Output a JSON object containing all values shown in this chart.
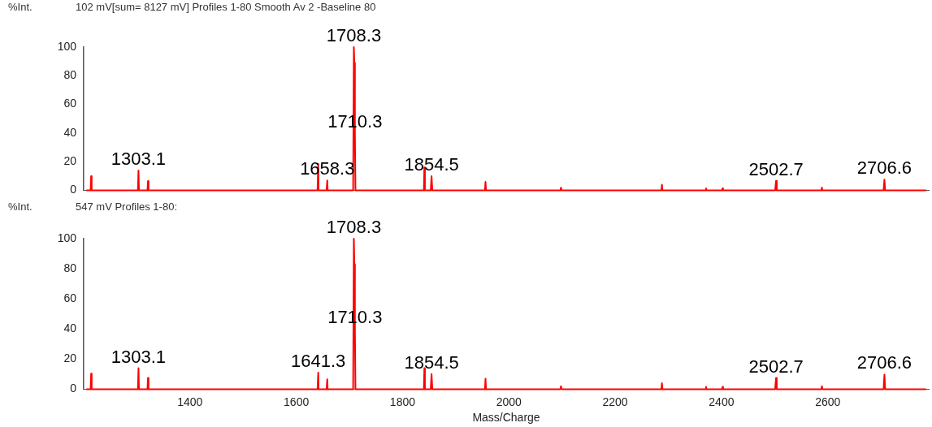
{
  "chart_data": [
    {
      "type": "line",
      "title": "102 mV[sum= 8127 mV]  Profiles 1-80 Smooth Av 2 -Baseline 80",
      "ylabel": "%Int.",
      "xlim": [
        1200,
        2790
      ],
      "ylim": [
        0,
        100
      ],
      "yticks": [
        0,
        20,
        40,
        60,
        80,
        100
      ],
      "tick_labels": "y",
      "series": [
        {
          "color": "#ff0000",
          "x": [
            1205,
            1213,
            1214,
            1215,
            1302,
            1303.1,
            1304,
            1320,
            1321,
            1322,
            1640,
            1641.3,
            1642,
            1657,
            1658.3,
            1659,
            1707,
            1708.3,
            1709.3,
            1710.3,
            1711.3,
            1840,
            1841,
            1842,
            1853,
            1854.5,
            1856,
            1955,
            1956,
            1957,
            2097,
            2098,
            2099,
            2287,
            2288,
            2289,
            2370,
            2371,
            2372,
            2401,
            2402,
            2403,
            2501,
            2502.7,
            2504,
            2588,
            2589,
            2590,
            2705,
            2706.6,
            2708,
            2785
          ],
          "values": [
            0,
            0,
            10,
            0,
            0,
            14,
            0,
            0,
            6.5,
            0,
            0,
            18.5,
            0,
            0,
            7,
            0,
            0,
            100,
            89,
            40,
            0,
            0,
            16,
            0,
            0,
            10,
            0,
            0,
            6,
            0,
            0,
            2,
            0,
            0,
            4,
            0,
            0,
            1.5,
            0,
            0,
            1.5,
            0,
            0,
            6.7,
            0,
            0,
            2,
            0,
            0,
            7.6,
            0,
            0
          ]
        }
      ],
      "annotations": [
        {
          "text": "1303.1",
          "x": 1303.1,
          "y": 14
        },
        {
          "text": "1658.3",
          "x": 1658.3,
          "y": 7
        },
        {
          "text": "1708.3",
          "x": 1708.3,
          "y": 100
        },
        {
          "text": "1710.3",
          "x": 1710.3,
          "y": 40
        },
        {
          "text": "1854.5",
          "x": 1854.5,
          "y": 10
        },
        {
          "text": "2502.7",
          "x": 2502.7,
          "y": 6.7
        },
        {
          "text": "2706.6",
          "x": 2706.6,
          "y": 7.6
        }
      ]
    },
    {
      "type": "line",
      "title": "547 mV  Profiles 1-80:",
      "ylabel": "%Int.",
      "xlabel": "Mass/Charge",
      "xlim": [
        1200,
        2790
      ],
      "xticks": [
        1400,
        1600,
        1800,
        2000,
        2200,
        2400,
        2600
      ],
      "ylim": [
        0,
        100
      ],
      "yticks": [
        0,
        20,
        40,
        60,
        80,
        100
      ],
      "series": [
        {
          "color": "#ff0000",
          "x": [
            1205,
            1213,
            1214,
            1215,
            1302,
            1303.1,
            1304,
            1320,
            1321,
            1322,
            1640,
            1641.3,
            1642,
            1657,
            1658.3,
            1659,
            1707,
            1708.3,
            1709.3,
            1710.3,
            1711.3,
            1840,
            1841,
            1842,
            1853,
            1854.5,
            1856,
            1955,
            1956,
            1957,
            2097,
            2098,
            2099,
            2287,
            2288,
            2289,
            2370,
            2371,
            2372,
            2401,
            2402,
            2403,
            2501,
            2502.7,
            2504,
            2588,
            2589,
            2590,
            2705,
            2706.6,
            2708,
            2785
          ],
          "values": [
            0,
            0,
            10.3,
            0,
            0,
            14,
            0,
            0,
            7.5,
            0,
            0,
            11,
            0,
            0,
            6.5,
            0,
            0,
            100,
            83,
            40,
            0,
            0,
            14,
            0,
            0,
            10,
            0,
            0,
            7,
            0,
            0,
            2,
            0,
            0,
            4,
            0,
            0,
            1.5,
            0,
            0,
            1.5,
            0,
            0,
            7.5,
            0,
            0,
            2,
            0,
            0,
            9.7,
            0,
            0
          ]
        }
      ],
      "annotations": [
        {
          "text": "1303.1",
          "x": 1303.1,
          "y": 14
        },
        {
          "text": "1641.3",
          "x": 1641.3,
          "y": 11
        },
        {
          "text": "1708.3",
          "x": 1708.3,
          "y": 100
        },
        {
          "text": "1710.3",
          "x": 1710.3,
          "y": 40
        },
        {
          "text": "1854.5",
          "x": 1854.5,
          "y": 10
        },
        {
          "text": "2502.7",
          "x": 2502.7,
          "y": 7.5
        },
        {
          "text": "2706.6",
          "x": 2706.6,
          "y": 9.7
        }
      ]
    }
  ]
}
